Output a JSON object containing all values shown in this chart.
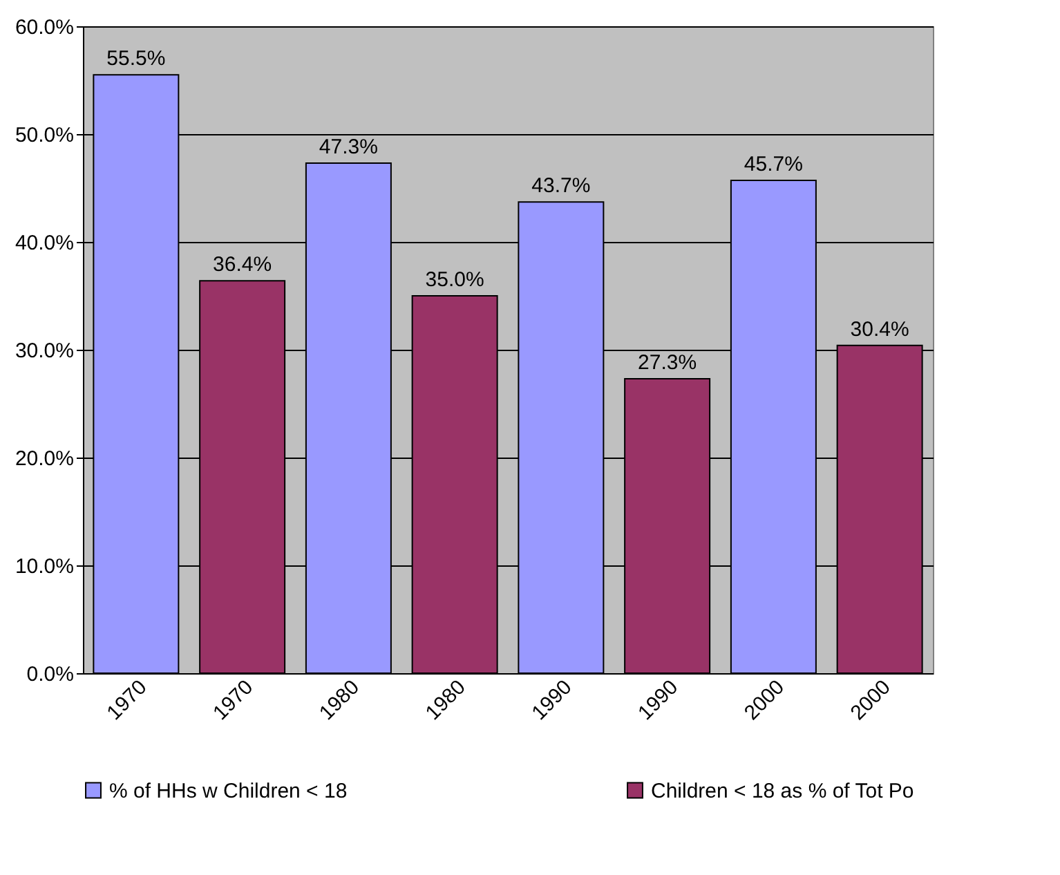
{
  "chart_data": {
    "type": "bar",
    "categories": [
      "1970",
      "1970",
      "1980",
      "1980",
      "1990",
      "1990",
      "2000",
      "2000"
    ],
    "series": [
      {
        "name": "% of HHs w Children < 18",
        "color": "#9999ff",
        "values": [
          55.5,
          null,
          47.3,
          null,
          43.7,
          null,
          45.7,
          null
        ],
        "value_labels": [
          "55.5%",
          null,
          "47.3%",
          null,
          "43.7%",
          null,
          "45.7%",
          null
        ]
      },
      {
        "name": "Children < 18 as % of Tot Po",
        "color": "#993366",
        "values": [
          null,
          36.4,
          null,
          35.0,
          null,
          27.3,
          null,
          30.4
        ],
        "value_labels": [
          null,
          "36.4%",
          null,
          "35.0%",
          null,
          "27.3%",
          null,
          "30.4%"
        ]
      }
    ],
    "ylim": [
      0,
      60
    ],
    "yticks": [
      {
        "value": 0,
        "label": "0.0%"
      },
      {
        "value": 10,
        "label": "10.0%"
      },
      {
        "value": 20,
        "label": "20.0%"
      },
      {
        "value": 30,
        "label": "30.0%"
      },
      {
        "value": 40,
        "label": "40.0%"
      },
      {
        "value": 50,
        "label": "50.0%"
      },
      {
        "value": 60,
        "label": "60.0%"
      }
    ],
    "grid": "y",
    "legend": "bottom"
  }
}
